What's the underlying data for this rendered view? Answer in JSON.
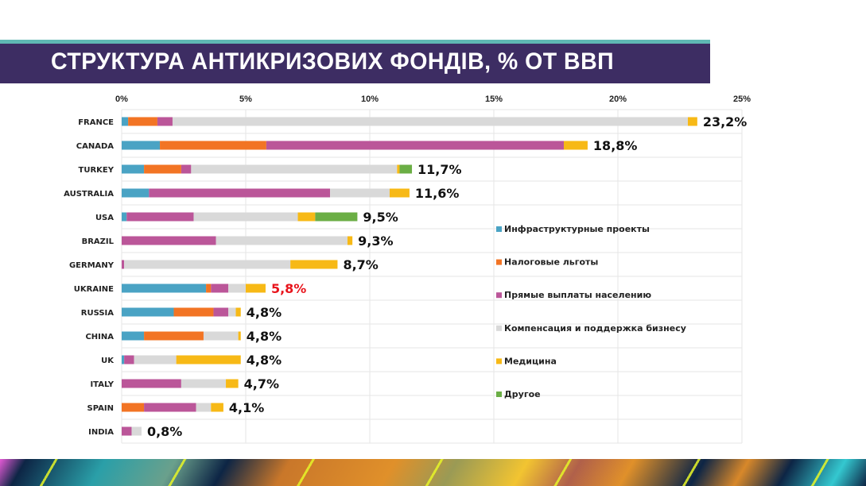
{
  "header": {
    "title": "СТРУКТУРА АНТИКРИЗОВИХ ФОНДІВ, % ОТ ВВП"
  },
  "chart_data": {
    "type": "bar",
    "orientation": "horizontal",
    "stacked": true,
    "title": "СТРУКТУРА АНТИКРИЗОВИХ ФОНДІВ, % ОТ ВВП",
    "xlim": [
      0,
      25
    ],
    "x_ticks": [
      "0%",
      "5%",
      "10%",
      "15%",
      "20%",
      "25%"
    ],
    "x_tick_values": [
      0,
      5,
      10,
      15,
      20,
      25
    ],
    "grid": true,
    "legend_position": "right-inside",
    "categories": [
      "FRANCE",
      "CANADA",
      "TURKEY",
      "AUSTRALIA",
      "USA",
      "BRAZIL",
      "GERMANY",
      "UKRAINE",
      "RUSSIA",
      "CHINA",
      "UK",
      "ITALY",
      "SPAIN",
      "INDIA"
    ],
    "totals": [
      "23,2%",
      "18,8%",
      "11,7%",
      "11,6%",
      "9,5%",
      "9,3%",
      "8,7%",
      "5,8%",
      "4,8%",
      "4,8%",
      "4,8%",
      "4,7%",
      "4,1%",
      "0,8%"
    ],
    "highlight_category": "UKRAINE",
    "highlight_color": "#e8141c",
    "series": [
      {
        "name": "Инфраструктурные проекты",
        "color": "#4aa3c4",
        "values": [
          0.26,
          1.54,
          0.9,
          1.1,
          0.2,
          0,
          0,
          3.4,
          2.1,
          0.9,
          0.1,
          0,
          0,
          0
        ]
      },
      {
        "name": "Налоговые льготы",
        "color": "#f27424",
        "values": [
          1.18,
          4.29,
          1.5,
          0,
          0,
          0,
          0,
          0.2,
          1.6,
          2.4,
          0,
          0,
          0.9,
          0
        ]
      },
      {
        "name": "Прямые выплаты населению",
        "color": "#bb5699",
        "values": [
          0.61,
          11.99,
          0.4,
          7.3,
          2.7,
          3.8,
          0.1,
          0.7,
          0.6,
          0,
          0.4,
          2.4,
          2.1,
          0.4
        ]
      },
      {
        "name": "Компенсация и поддержка бизнесу",
        "color": "#d9d9d9",
        "values": [
          20.77,
          0,
          8.3,
          2.4,
          4.2,
          5.3,
          6.7,
          0.7,
          0.3,
          1.4,
          1.7,
          1.8,
          0.6,
          0.4
        ]
      },
      {
        "name": "Медицина",
        "color": "#f7b916",
        "values": [
          0.38,
          0.96,
          0.1,
          0.8,
          0.7,
          0.2,
          1.9,
          0.8,
          0.2,
          0.1,
          2.6,
          0.5,
          0.5,
          0
        ]
      },
      {
        "name": "Другое",
        "color": "#6bae45",
        "values": [
          0,
          0,
          0.5,
          0,
          1.7,
          0,
          0,
          0,
          0,
          0,
          0,
          0,
          0,
          0
        ]
      }
    ]
  }
}
